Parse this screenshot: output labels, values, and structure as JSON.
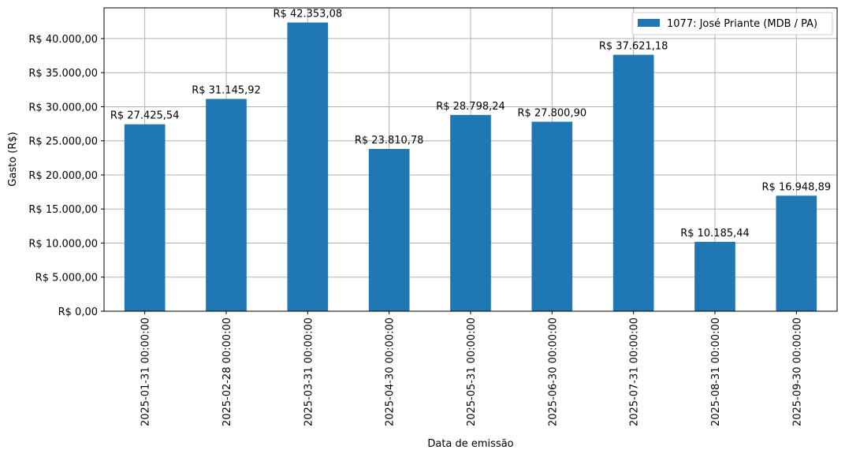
{
  "chart_data": {
    "type": "bar",
    "xlabel": "Data de emissão",
    "ylabel": "Gasto (R$)",
    "ylim": [
      0,
      44500
    ],
    "yticks": [
      0,
      5000,
      10000,
      15000,
      20000,
      25000,
      30000,
      35000,
      40000
    ],
    "ytick_labels": [
      "R$ 0,00",
      "R$ 5.000,00",
      "R$ 10.000,00",
      "R$ 15.000,00",
      "R$ 20.000,00",
      "R$ 25.000,00",
      "R$ 30.000,00",
      "R$ 35.000,00",
      "R$ 40.000,00"
    ],
    "grid": true,
    "legend_position": "top-right",
    "bar_color": "#1f77b4",
    "categories": [
      "2025-01-31 00:00:00",
      "2025-02-28 00:00:00",
      "2025-03-31 00:00:00",
      "2025-04-30 00:00:00",
      "2025-05-31 00:00:00",
      "2025-06-30 00:00:00",
      "2025-07-31 00:00:00",
      "2025-08-31 00:00:00",
      "2025-09-30 00:00:00"
    ],
    "series": [
      {
        "name": "1077: José Priante (MDB / PA)",
        "values": [
          27425.54,
          31145.92,
          42353.08,
          23810.78,
          28798.24,
          27800.9,
          37621.18,
          10185.44,
          16948.89
        ],
        "data_labels": [
          "R$ 27.425,54",
          "R$ 31.145,92",
          "R$ 42.353,08",
          "R$ 23.810,78",
          "R$ 28.798,24",
          "R$ 27.800,90",
          "R$ 37.621,18",
          "R$ 10.185,44",
          "R$ 16.948,89"
        ]
      }
    ]
  }
}
